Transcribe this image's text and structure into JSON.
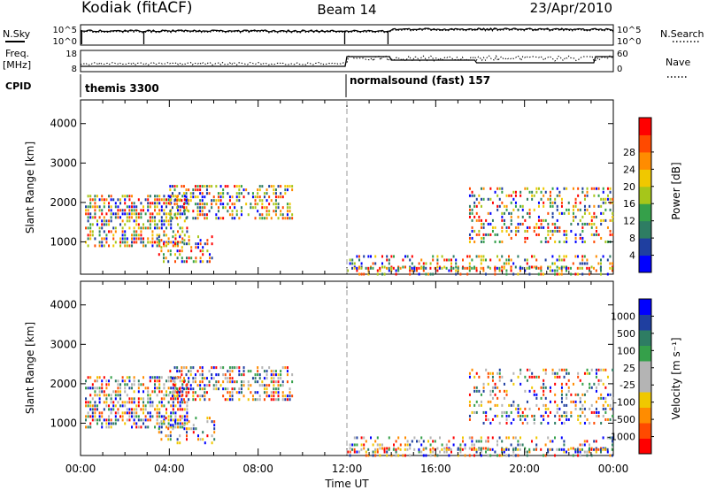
{
  "header": {
    "station": "Kodiak (fitACF)",
    "beam": "Beam 14",
    "date": "23/Apr/2010"
  },
  "labels": {
    "nsky": "N.Sky",
    "nsearch": "N.Search",
    "freq_line1": "Freq.",
    "freq_line2": "[MHz]",
    "nave": "Nave",
    "cpid": "CPID"
  },
  "cpid_segments": [
    {
      "name": "themis 3300",
      "start_hour": 0
    },
    {
      "name": "normalsound (fast) 157",
      "start_hour": 12
    }
  ],
  "noise_panel": {
    "left_ticks": [
      "10^5",
      "10^0"
    ],
    "right_ticks": [
      "10^5",
      "10^0"
    ]
  },
  "freq_panel": {
    "left_ticks": [
      "18",
      "8"
    ],
    "right_ticks": [
      "60",
      "0"
    ]
  },
  "colors": {
    "power_scale": [
      "#0000ff",
      "#1f3fa0",
      "#2e7d63",
      "#35a04a",
      "#a6c61a",
      "#f0c800",
      "#ff8c00",
      "#ff4a00",
      "#ff0000"
    ],
    "velocity_scale": [
      "#ff0000",
      "#ff4a00",
      "#ff8c00",
      "#f0c800",
      "#b4b4b4",
      "#b4b4b4",
      "#35a04a",
      "#2e7d63",
      "#1f3fa0",
      "#0000ff"
    ]
  },
  "chart_data": [
    {
      "type": "heatmap",
      "ylabel": "Slant Range [km]",
      "xlabel": "Time UT",
      "xlim": [
        0,
        24
      ],
      "ylim": [
        180,
        4600
      ],
      "x_ticks": [
        "00:00",
        "04:00",
        "08:00",
        "12:00",
        "16:00",
        "20:00",
        "00:00"
      ],
      "y_ticks": [
        "1000",
        "2000",
        "3000",
        "4000"
      ],
      "colorbar": {
        "label": "Power [dB]",
        "range": [
          0,
          32
        ],
        "ticks": [
          "4",
          "8",
          "12",
          "16",
          "20",
          "24",
          "28"
        ]
      },
      "scatter_regions": [
        {
          "hours": [
            0.2,
            4.8
          ],
          "range_km": [
            900,
            2200
          ],
          "density": 0.55
        },
        {
          "hours": [
            3.5,
            6.0
          ],
          "range_km": [
            500,
            1200
          ],
          "density": 0.3
        },
        {
          "hours": [
            4.0,
            9.5
          ],
          "range_km": [
            1600,
            2500
          ],
          "density": 0.45
        },
        {
          "hours": [
            12.0,
            24.0
          ],
          "range_km": [
            180,
            650
          ],
          "density": 0.35
        },
        {
          "hours": [
            17.5,
            24.0
          ],
          "range_km": [
            1000,
            2400
          ],
          "density": 0.3
        }
      ]
    },
    {
      "type": "heatmap",
      "ylabel": "Slant Range [km]",
      "xlabel": "Time UT",
      "xlim": [
        0,
        24
      ],
      "ylim": [
        180,
        4600
      ],
      "x_ticks": [
        "00:00",
        "04:00",
        "08:00",
        "12:00",
        "16:00",
        "20:00",
        "00:00"
      ],
      "y_ticks": [
        "1000",
        "2000",
        "3000",
        "4000"
      ],
      "colorbar": {
        "label": "Velocity [m s⁻¹]",
        "ticks": [
          "1000",
          "500",
          "100",
          "25",
          "-25",
          "-100",
          "-500",
          "-1000"
        ]
      },
      "scatter_regions": [
        {
          "hours": [
            0.2,
            4.8
          ],
          "range_km": [
            900,
            2200
          ],
          "density": 0.55
        },
        {
          "hours": [
            3.5,
            6.0
          ],
          "range_km": [
            500,
            1200
          ],
          "density": 0.3
        },
        {
          "hours": [
            4.0,
            9.5
          ],
          "range_km": [
            1600,
            2500
          ],
          "density": 0.45
        },
        {
          "hours": [
            12.0,
            24.0
          ],
          "range_km": [
            180,
            650
          ],
          "density": 0.35
        },
        {
          "hours": [
            17.5,
            24.0
          ],
          "range_km": [
            1000,
            2400
          ],
          "density": 0.3
        }
      ]
    }
  ]
}
